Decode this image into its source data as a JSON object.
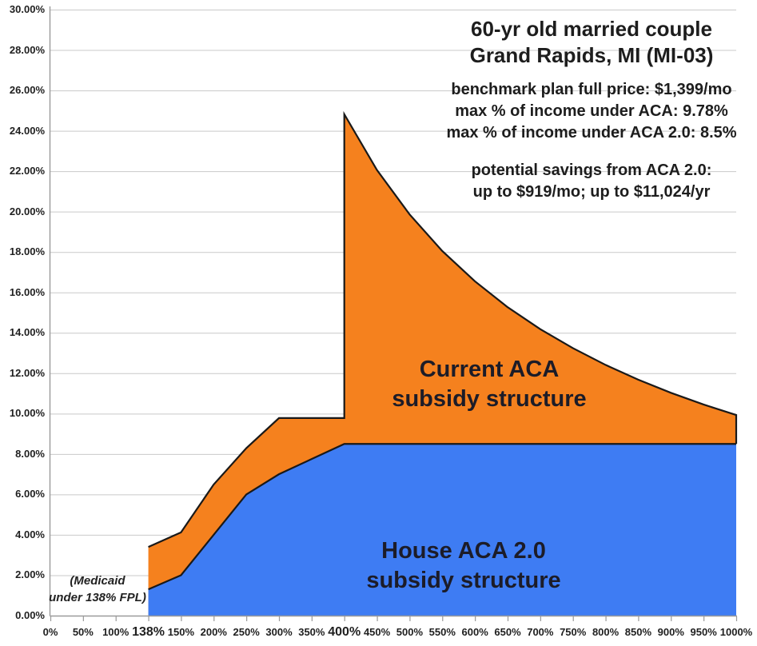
{
  "chart_data": {
    "type": "area",
    "x_axis_unit": "% of Federal Poverty Level",
    "categories": [
      "0%",
      "50%",
      "100%",
      "138%",
      "150%",
      "200%",
      "250%",
      "300%",
      "350%",
      "400%",
      "450%",
      "500%",
      "550%",
      "600%",
      "650%",
      "700%",
      "750%",
      "800%",
      "850%",
      "900%",
      "950%",
      "1000%"
    ],
    "emphasized_categories": [
      "138%",
      "400%"
    ],
    "y_axis": {
      "min": 0,
      "max": 30,
      "step": 2,
      "tick_labels": [
        "0.00%",
        "2.00%",
        "4.00%",
        "6.00%",
        "8.00%",
        "10.00%",
        "12.00%",
        "14.00%",
        "16.00%",
        "18.00%",
        "20.00%",
        "22.00%",
        "24.00%",
        "26.00%",
        "28.00%",
        "30.00%"
      ]
    },
    "grid": true,
    "legend_position": "none",
    "outline_color": "#191919",
    "gridline_color": "#c9c9c9",
    "axis_color": "#9a9a9a",
    "series": [
      {
        "name": "Current ACA subsidy structure",
        "color": "#F5811E",
        "points": [
          [
            "138%",
            3.4
          ],
          [
            "150%",
            4.12
          ],
          [
            "200%",
            6.49
          ],
          [
            "250%",
            8.29
          ],
          [
            "300%",
            9.78
          ],
          [
            "350%",
            9.78
          ],
          [
            "400%",
            9.78
          ],
          [
            "400%",
            24.82
          ],
          [
            "450%",
            22.06
          ],
          [
            "500%",
            19.86
          ],
          [
            "550%",
            18.05
          ],
          [
            "600%",
            16.55
          ],
          [
            "650%",
            15.27
          ],
          [
            "700%",
            14.18
          ],
          [
            "750%",
            13.24
          ],
          [
            "800%",
            12.41
          ],
          [
            "850%",
            11.68
          ],
          [
            "900%",
            11.03
          ],
          [
            "950%",
            10.45
          ],
          [
            "1000%",
            9.93
          ],
          [
            "1000%",
            8.5
          ]
        ]
      },
      {
        "name": "House ACA 2.0 subsidy structure",
        "color": "#3E7CF3",
        "points": [
          [
            "138%",
            1.3
          ],
          [
            "150%",
            2.0
          ],
          [
            "200%",
            4.0
          ],
          [
            "250%",
            6.0
          ],
          [
            "300%",
            7.0
          ],
          [
            "350%",
            7.75
          ],
          [
            "400%",
            8.5
          ],
          [
            "450%",
            8.5
          ],
          [
            "500%",
            8.5
          ],
          [
            "550%",
            8.5
          ],
          [
            "600%",
            8.5
          ],
          [
            "650%",
            8.5
          ],
          [
            "700%",
            8.5
          ],
          [
            "750%",
            8.5
          ],
          [
            "800%",
            8.5
          ],
          [
            "850%",
            8.5
          ],
          [
            "900%",
            8.5
          ],
          [
            "950%",
            8.5
          ],
          [
            "1000%",
            8.5
          ]
        ]
      }
    ]
  },
  "annotations": {
    "title_line1": "60-yr old married couple",
    "title_line2": "Grand Rapids, MI (MI-03)",
    "info_line1": "benchmark plan full price: $1,399/mo",
    "info_line2": "max % of income under ACA: 9.78%",
    "info_line3": "max % of income under ACA 2.0: 8.5%",
    "savings_line1": "potential savings from ACA 2.0:",
    "savings_line2": "up to $919/mo; up to $11,024/yr",
    "current_aca_label_line1": "Current ACA",
    "current_aca_label_line2": "subsidy structure",
    "house_aca_label_line1": "House ACA 2.0",
    "house_aca_label_line2": "subsidy structure",
    "medicaid_note_line1": "(Medicaid",
    "medicaid_note_line2": "under 138% FPL)"
  }
}
